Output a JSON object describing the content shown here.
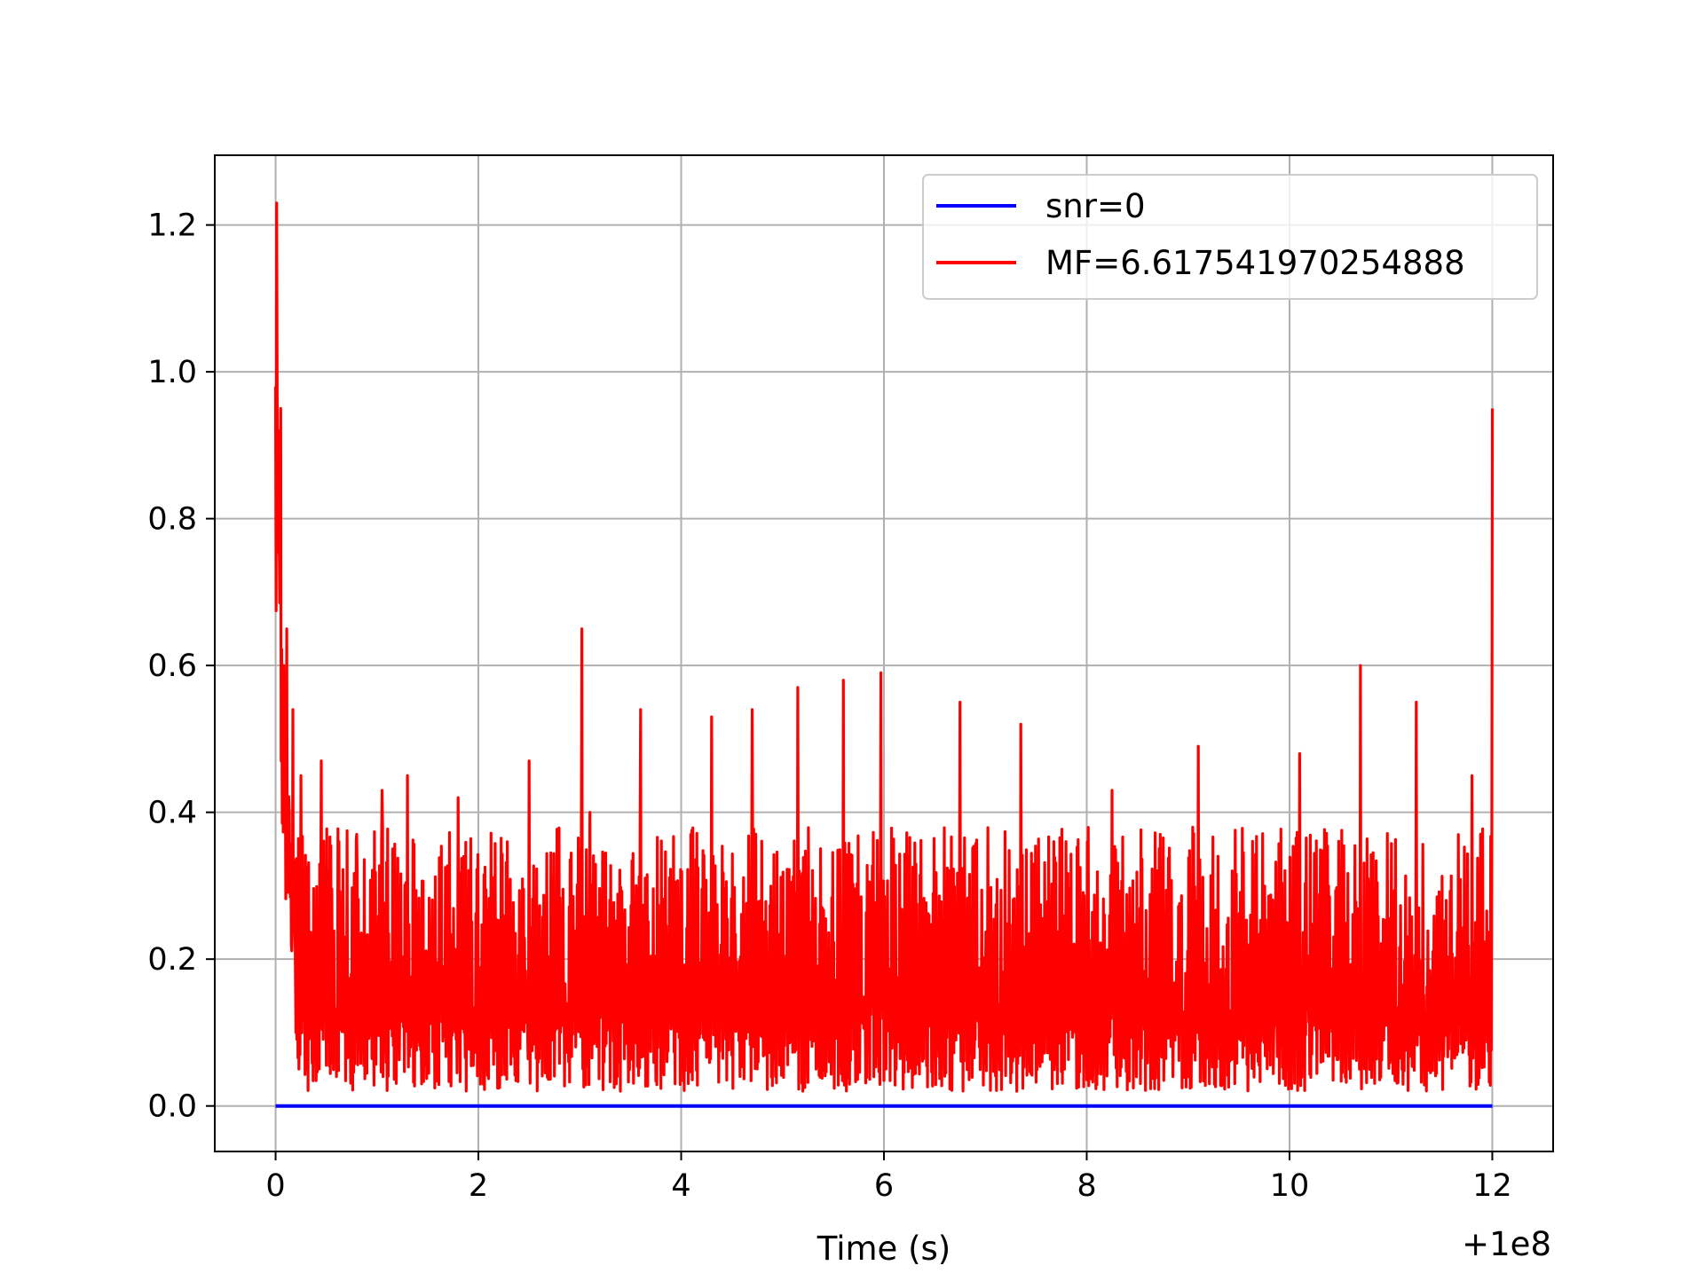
{
  "chart_data": {
    "type": "line",
    "title": "",
    "xlabel": "Time (s)",
    "ylabel": "",
    "x_offset_text": "+1e8",
    "xlim": [
      -0.6,
      12.6
    ],
    "ylim": [
      -0.062,
      1.295
    ],
    "xticks": [
      0,
      2,
      4,
      6,
      8,
      10,
      12
    ],
    "xtick_labels": [
      "0",
      "2",
      "4",
      "6",
      "8",
      "10",
      "12"
    ],
    "yticks": [
      0.0,
      0.2,
      0.4,
      0.6,
      0.8,
      1.0,
      1.2
    ],
    "ytick_labels": [
      "0.0",
      "0.2",
      "0.4",
      "0.6",
      "0.8",
      "1.0",
      "1.2"
    ],
    "grid": true,
    "legend_position": "upper right",
    "series": [
      {
        "name": "snr=0",
        "color": "#0000ff",
        "x": [
          0,
          12
        ],
        "values": [
          0,
          0
        ]
      },
      {
        "name": "MF=6.617541970254888",
        "color": "#ff0000",
        "description_points": [
          [
            0.0,
            0.98
          ],
          [
            0.01,
            1.23
          ],
          [
            0.03,
            0.92
          ],
          [
            0.05,
            0.95
          ],
          [
            0.08,
            0.6
          ],
          [
            0.11,
            0.65
          ],
          [
            0.14,
            0.3
          ],
          [
            0.17,
            0.54
          ],
          [
            0.2,
            0.1
          ],
          [
            0.25,
            0.45
          ],
          [
            0.3,
            0.05
          ],
          [
            0.45,
            0.47
          ],
          [
            0.6,
            0.04
          ],
          [
            0.8,
            0.37
          ],
          [
            1.05,
            0.43
          ],
          [
            1.3,
            0.45
          ],
          [
            1.8,
            0.42
          ],
          [
            2.5,
            0.47
          ],
          [
            3.02,
            0.65
          ],
          [
            3.1,
            0.4
          ],
          [
            3.6,
            0.54
          ],
          [
            4.3,
            0.53
          ],
          [
            4.7,
            0.54
          ],
          [
            5.15,
            0.57
          ],
          [
            5.6,
            0.58
          ],
          [
            5.97,
            0.59
          ],
          [
            6.75,
            0.55
          ],
          [
            7.35,
            0.52
          ],
          [
            8.25,
            0.43
          ],
          [
            9.1,
            0.49
          ],
          [
            10.1,
            0.48
          ],
          [
            10.7,
            0.6
          ],
          [
            11.25,
            0.55
          ],
          [
            11.8,
            0.45
          ],
          [
            12.0,
            0.95
          ]
        ],
        "typical_range": [
          0.02,
          0.4
        ]
      }
    ]
  }
}
